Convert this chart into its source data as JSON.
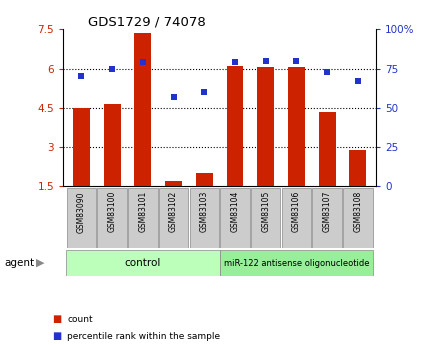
{
  "title": "GDS1729 / 74078",
  "categories": [
    "GSM83090",
    "GSM83100",
    "GSM83101",
    "GSM83102",
    "GSM83103",
    "GSM83104",
    "GSM83105",
    "GSM83106",
    "GSM83107",
    "GSM83108"
  ],
  "counts": [
    4.5,
    4.65,
    7.35,
    1.7,
    2.0,
    6.1,
    6.05,
    6.05,
    4.35,
    2.9
  ],
  "percentile_ranks": [
    70,
    75,
    79,
    57,
    60,
    79,
    80,
    80,
    73,
    67
  ],
  "ylim_left": [
    1.5,
    7.5
  ],
  "ylim_right": [
    0,
    100
  ],
  "yticks_left": [
    1.5,
    3.0,
    4.5,
    6.0,
    7.5
  ],
  "ytick_labels_left": [
    "1.5",
    "3",
    "4.5",
    "6",
    "7.5"
  ],
  "yticks_right": [
    0,
    25,
    50,
    75,
    100
  ],
  "ytick_labels_right": [
    "0",
    "25",
    "50",
    "75",
    "100%"
  ],
  "grid_lines": [
    3.0,
    4.5,
    6.0
  ],
  "bar_color": "#cc2200",
  "dot_color": "#2233cc",
  "bar_bottom": 1.5,
  "control_label": "control",
  "treatment_label": "miR-122 antisense oligonucleotide",
  "agent_label": "agent",
  "legend_count": "count",
  "legend_percentile": "percentile rank within the sample",
  "control_bg": "#bbffbb",
  "treatment_bg": "#99ee99",
  "xlabel_bg": "#cccccc",
  "bar_width": 0.55
}
